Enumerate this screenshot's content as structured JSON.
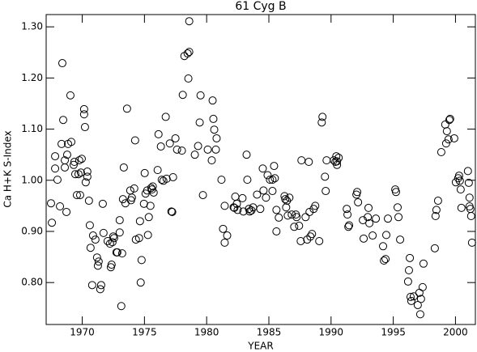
{
  "chart_data": {
    "type": "scatter",
    "title": "61 Cyg B",
    "x_label": "YEAR",
    "y_label": "Ca H+K S-Index",
    "color": "#000000",
    "x": [
      1967.49,
      1967.56,
      1967.82,
      1967.82,
      1968.01,
      1968.21,
      1968.34,
      1968.4,
      1968.47,
      1968.6,
      1968.6,
      1968.73,
      1968.79,
      1968.86,
      1969.05,
      1969.12,
      1969.31,
      1969.37,
      1969.44,
      1969.57,
      1969.7,
      1969.76,
      1969.83,
      1969.89,
      1969.96,
      1970.15,
      1970.15,
      1970.22,
      1970.28,
      1970.41,
      1970.41,
      1970.54,
      1970.61,
      1970.67,
      1970.8,
      1970.87,
      1971.06,
      1971.19,
      1971.26,
      1971.32,
      1971.45,
      1971.52,
      1971.65,
      1971.71,
      1972.04,
      1972.23,
      1972.3,
      1972.36,
      1972.43,
      1972.49,
      1972.56,
      1972.75,
      1972.82,
      1973.01,
      1973.01,
      1973.14,
      1973.21,
      1973.27,
      1973.34,
      1973.47,
      1973.6,
      1973.86,
      1973.92,
      1973.99,
      1974.18,
      1974.25,
      1974.31,
      1974.57,
      1974.64,
      1974.7,
      1974.77,
      1974.96,
      1975.02,
      1975.09,
      1975.22,
      1975.28,
      1975.35,
      1975.48,
      1975.54,
      1975.61,
      1975.67,
      1975.74,
      1976.06,
      1976.13,
      1976.32,
      1976.39,
      1976.52,
      1976.71,
      1976.78,
      1977.04,
      1977.17,
      1977.23,
      1977.3,
      1977.49,
      1977.62,
      1978.01,
      1978.08,
      1978.21,
      1978.47,
      1978.53,
      1978.6,
      1978.6,
      1979.05,
      1979.31,
      1979.44,
      1979.51,
      1979.7,
      1980.09,
      1980.41,
      1980.48,
      1980.54,
      1980.61,
      1980.74,
      1980.8,
      1981.19,
      1981.32,
      1981.45,
      1981.45,
      1981.65,
      1982.17,
      1982.23,
      1982.3,
      1982.43,
      1982.49,
      1982.88,
      1982.95,
      1983.21,
      1983.27,
      1983.4,
      1983.47,
      1983.6,
      1983.73,
      1984.05,
      1984.31,
      1984.51,
      1984.57,
      1984.77,
      1984.9,
      1985.09,
      1985.29,
      1985.29,
      1985.42,
      1985.48,
      1985.61,
      1985.61,
      1985.8,
      1986.26,
      1986.32,
      1986.39,
      1986.45,
      1986.52,
      1986.65,
      1986.84,
      1987.04,
      1987.17,
      1987.23,
      1987.43,
      1987.56,
      1987.62,
      1987.95,
      1988.08,
      1988.21,
      1988.27,
      1988.34,
      1988.47,
      1988.6,
      1988.73,
      1989.05,
      1989.25,
      1989.31,
      1989.51,
      1989.57,
      1989.64,
      1990.22,
      1990.35,
      1990.42,
      1990.48,
      1990.48,
      1990.61,
      1991.26,
      1991.32,
      1991.39,
      1991.45,
      1992.04,
      1992.1,
      1992.17,
      1992.56,
      1992.62,
      1992.95,
      1993.01,
      1993.08,
      1993.34,
      1993.6,
      1994.18,
      1994.25,
      1994.38,
      1994.44,
      1994.57,
      1995.16,
      1995.22,
      1995.35,
      1995.42,
      1995.55,
      1996.19,
      1996.26,
      1996.33,
      1996.39,
      1996.45,
      1996.65,
      1996.97,
      1997.1,
      1997.17,
      1997.23,
      1997.36,
      1997.43,
      1998.34,
      1998.4,
      1998.47,
      1998.6,
      1998.86,
      1999.18,
      1999.25,
      1999.31,
      1999.51,
      1999.57,
      1999.44,
      1999.9,
      2000.03,
      2000.22,
      2000.29,
      2000.35,
      2000.42,
      2000.48,
      2001.0,
      2001.07,
      2001.13,
      2001.13,
      2001.2,
      2001.26,
      2001.33
    ],
    "values": [
      0.955,
      0.917,
      1.047,
      1.023,
      1.001,
      0.949,
      1.071,
      1.229,
      1.118,
      1.039,
      1.025,
      0.938,
      1.05,
      1.071,
      1.166,
      1.075,
      1.03,
      1.036,
      1.012,
      0.971,
      1.012,
      1.039,
      0.971,
      1.015,
      1.042,
      1.139,
      1.129,
      1.104,
      0.996,
      1.017,
      1.007,
      0.96,
      0.912,
      0.868,
      0.795,
      0.892,
      0.884,
      0.849,
      0.833,
      0.841,
      0.787,
      0.795,
      0.954,
      0.897,
      0.881,
      0.876,
      0.83,
      0.835,
      0.879,
      0.89,
      0.887,
      0.859,
      0.859,
      0.922,
      0.898,
      0.754,
      0.857,
      0.963,
      1.025,
      0.955,
      1.14,
      0.98,
      0.961,
      0.966,
      0.984,
      1.078,
      0.884,
      0.887,
      0.92,
      0.8,
      0.844,
      0.954,
      1.014,
      0.974,
      0.98,
      0.893,
      0.928,
      0.95,
      0.985,
      0.982,
      0.988,
      0.976,
      1.02,
      1.09,
      1.066,
      1.001,
      0.999,
      1.124,
      1.003,
      1.072,
      0.939,
      0.938,
      1.006,
      1.082,
      1.06,
      1.058,
      1.167,
      1.243,
      1.248,
      1.199,
      1.311,
      1.251,
      1.05,
      1.067,
      1.113,
      1.166,
      0.971,
      1.06,
      1.039,
      1.156,
      1.12,
      1.099,
      1.06,
      1.082,
      1.001,
      0.905,
      0.95,
      0.878,
      0.892,
      0.947,
      0.946,
      0.968,
      0.954,
      0.942,
      0.965,
      0.939,
      1.05,
      1.001,
      0.944,
      0.939,
      0.941,
      0.947,
      0.972,
      0.944,
      1.023,
      0.98,
      0.966,
      1.01,
      1.001,
      1.001,
      0.979,
      1.028,
      1.004,
      0.9,
      0.942,
      0.927,
      0.969,
      0.963,
      0.947,
      0.96,
      0.931,
      0.966,
      0.933,
      0.909,
      0.933,
      0.928,
      0.911,
      0.881,
      1.039,
      0.928,
      0.884,
      1.036,
      0.938,
      0.89,
      0.895,
      0.944,
      0.95,
      0.881,
      1.113,
      1.124,
      1.007,
      0.979,
      1.039,
      1.039,
      1.036,
      1.047,
      1.037,
      1.03,
      1.044,
      0.944,
      0.933,
      0.909,
      0.912,
      0.972,
      0.977,
      0.957,
      0.922,
      0.886,
      0.928,
      0.946,
      0.916,
      0.892,
      0.925,
      0.871,
      0.843,
      0.846,
      0.893,
      0.925,
      0.982,
      0.977,
      0.947,
      0.928,
      0.884,
      0.802,
      0.824,
      0.848,
      0.772,
      0.764,
      0.773,
      0.756,
      0.78,
      0.738,
      0.768,
      0.791,
      0.837,
      0.867,
      0.93,
      0.942,
      0.96,
      1.055,
      1.109,
      1.072,
      1.096,
      1.118,
      1.12,
      1.08,
      1.082,
      0.996,
      1.004,
      1.009,
      0.999,
      0.982,
      0.946,
      1.018,
      0.995,
      0.966,
      0.949,
      0.944,
      0.93,
      0.878
    ],
    "xlim": [
      1967.1,
      2001.6
    ],
    "ylim": [
      0.718,
      1.324
    ],
    "xticks": [
      1970,
      1975,
      1980,
      1985,
      1990,
      1995,
      2000
    ],
    "yticks": [
      {
        "value": 0.8,
        "label": "0.80"
      },
      {
        "value": 0.9,
        "label": "0.90"
      },
      {
        "value": 1.0,
        "label": "1.00"
      },
      {
        "value": 1.1,
        "label": "1.10"
      },
      {
        "value": 1.2,
        "label": "1.20"
      },
      {
        "value": 1.3,
        "label": "1.30"
      }
    ]
  }
}
